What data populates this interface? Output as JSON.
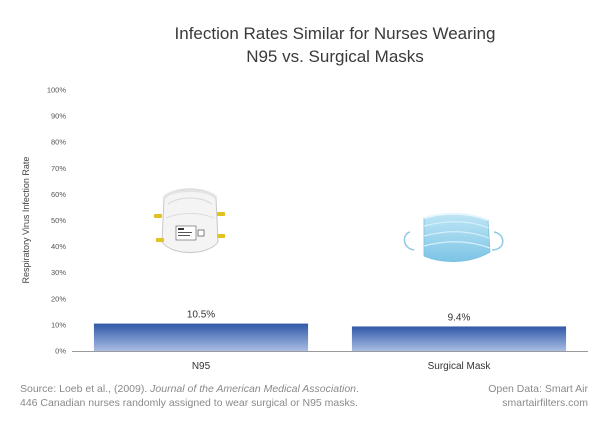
{
  "chart_data": {
    "type": "bar",
    "title_lines": [
      "Infection Rates Similar for Nurses Wearing",
      "N95 vs. Surgical Masks"
    ],
    "ylabel": "Respiratory Virus Infection Rate",
    "xlabel": "",
    "categories": [
      "N95",
      "Surgical Mask"
    ],
    "values": [
      10.5,
      9.4
    ],
    "value_labels": [
      "10.5%",
      "9.4%"
    ],
    "ylim": [
      0,
      100
    ],
    "yticks": [
      "0%",
      "10%",
      "20%",
      "30%",
      "40%",
      "50%",
      "60%",
      "70%",
      "80%",
      "90%",
      "100%"
    ],
    "grid": false,
    "bar_color_top": "#2f58a8",
    "bar_color_bottom": "#a9bde4"
  },
  "images": {
    "n95": "n95-respirator-mask",
    "surgical": "surgical-mask"
  },
  "footer": {
    "source_prefix": "Source: Loeb et al., (2009). ",
    "source_journal": "Journal of the American Medical Association",
    "source_suffix": ".",
    "note": "446 Canadian nurses randomly assigned to wear surgical or N95 masks.",
    "open_data": "Open Data: Smart Air",
    "website": "smartairfilters.com"
  }
}
